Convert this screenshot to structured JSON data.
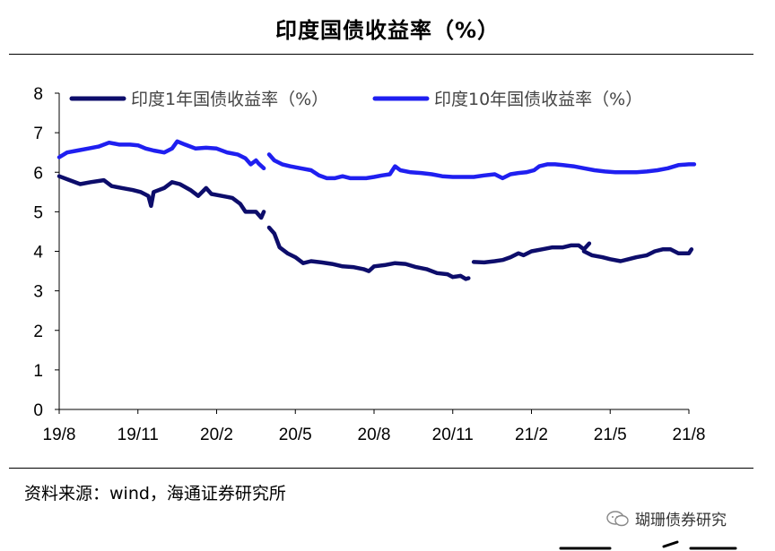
{
  "title": "印度国债收益率（%）",
  "source": "资料来源：wind，海通证券研究所",
  "watermark": {
    "text": "瑚珊债券研究",
    "icon": "wechat-icon"
  },
  "colors": {
    "series1": "#0d0d6b",
    "series2": "#1f1ff0",
    "axis": "#000000"
  },
  "chart_data": {
    "type": "line",
    "title": "印度国债收益率（%）",
    "xlabel": "",
    "ylabel": "",
    "ylim": [
      0,
      8
    ],
    "yticks": [
      0,
      1,
      2,
      3,
      4,
      5,
      6,
      7,
      8
    ],
    "xlim": [
      0,
      24
    ],
    "x_tick_labels": [
      {
        "x": 0,
        "label": "19/8"
      },
      {
        "x": 3,
        "label": "19/11"
      },
      {
        "x": 6,
        "label": "20/2"
      },
      {
        "x": 9,
        "label": "20/5"
      },
      {
        "x": 12,
        "label": "20/8"
      },
      {
        "x": 15,
        "label": "20/11"
      },
      {
        "x": 18,
        "label": "21/2"
      },
      {
        "x": 21,
        "label": "21/5"
      },
      {
        "x": 24,
        "label": "21/8"
      }
    ],
    "grid": false,
    "legend": "top",
    "series": [
      {
        "name": "印度1年国债收益率（%）",
        "segments": [
          [
            [
              0,
              5.9
            ],
            [
              0.4,
              5.8
            ],
            [
              0.8,
              5.7
            ],
            [
              1.2,
              5.75
            ],
            [
              1.7,
              5.8
            ],
            [
              2.0,
              5.65
            ],
            [
              2.4,
              5.6
            ],
            [
              2.8,
              5.55
            ],
            [
              3.1,
              5.5
            ],
            [
              3.4,
              5.4
            ],
            [
              3.5,
              5.15
            ],
            [
              3.6,
              5.5
            ],
            [
              4.0,
              5.6
            ],
            [
              4.3,
              5.75
            ],
            [
              4.6,
              5.7
            ],
            [
              5.0,
              5.55
            ],
            [
              5.3,
              5.4
            ],
            [
              5.6,
              5.6
            ],
            [
              5.8,
              5.45
            ],
            [
              6.2,
              5.4
            ],
            [
              6.6,
              5.35
            ],
            [
              6.9,
              5.2
            ],
            [
              7.1,
              5.0
            ],
            [
              7.5,
              5.0
            ],
            [
              7.7,
              4.85
            ],
            [
              7.8,
              5.0
            ]
          ],
          [
            [
              8.0,
              4.6
            ],
            [
              8.2,
              4.45
            ],
            [
              8.4,
              4.1
            ],
            [
              8.7,
              3.95
            ],
            [
              9.0,
              3.85
            ],
            [
              9.3,
              3.7
            ],
            [
              9.6,
              3.75
            ],
            [
              10.0,
              3.72
            ],
            [
              10.4,
              3.68
            ],
            [
              10.8,
              3.62
            ],
            [
              11.2,
              3.6
            ],
            [
              11.6,
              3.55
            ],
            [
              11.8,
              3.5
            ],
            [
              12.0,
              3.62
            ],
            [
              12.4,
              3.65
            ],
            [
              12.8,
              3.7
            ],
            [
              13.2,
              3.68
            ],
            [
              13.6,
              3.6
            ],
            [
              14.0,
              3.55
            ],
            [
              14.4,
              3.45
            ],
            [
              14.8,
              3.42
            ],
            [
              15.0,
              3.35
            ],
            [
              15.3,
              3.38
            ],
            [
              15.5,
              3.3
            ],
            [
              15.6,
              3.32
            ]
          ],
          [
            [
              15.8,
              3.73
            ],
            [
              16.2,
              3.72
            ],
            [
              16.6,
              3.75
            ],
            [
              16.9,
              3.78
            ],
            [
              17.2,
              3.85
            ],
            [
              17.5,
              3.95
            ],
            [
              17.7,
              3.9
            ],
            [
              18.0,
              4.0
            ],
            [
              18.4,
              4.05
            ],
            [
              18.8,
              4.1
            ],
            [
              19.2,
              4.1
            ],
            [
              19.5,
              4.15
            ],
            [
              19.8,
              4.15
            ],
            [
              20.0,
              4.05
            ],
            [
              20.2,
              4.2
            ]
          ],
          [
            [
              20.0,
              4.0
            ],
            [
              20.3,
              3.9
            ],
            [
              20.7,
              3.85
            ],
            [
              21.0,
              3.8
            ],
            [
              21.4,
              3.75
            ],
            [
              21.7,
              3.8
            ],
            [
              22.0,
              3.85
            ],
            [
              22.4,
              3.9
            ],
            [
              22.7,
              4.0
            ],
            [
              23.0,
              4.05
            ],
            [
              23.3,
              4.05
            ],
            [
              23.6,
              3.95
            ],
            [
              24.0,
              3.95
            ],
            [
              24.1,
              4.05
            ]
          ]
        ]
      },
      {
        "name": "印度10年国债收益率（%）",
        "segments": [
          [
            [
              0,
              6.38
            ],
            [
              0.3,
              6.5
            ],
            [
              0.7,
              6.55
            ],
            [
              1.1,
              6.6
            ],
            [
              1.5,
              6.65
            ],
            [
              1.9,
              6.75
            ],
            [
              2.3,
              6.7
            ],
            [
              2.7,
              6.7
            ],
            [
              3.0,
              6.68
            ],
            [
              3.3,
              6.6
            ],
            [
              3.6,
              6.55
            ],
            [
              4.0,
              6.5
            ],
            [
              4.3,
              6.6
            ],
            [
              4.5,
              6.78
            ],
            [
              4.8,
              6.7
            ],
            [
              5.2,
              6.6
            ],
            [
              5.6,
              6.62
            ],
            [
              6.0,
              6.6
            ],
            [
              6.4,
              6.5
            ],
            [
              6.8,
              6.45
            ],
            [
              7.1,
              6.35
            ],
            [
              7.3,
              6.2
            ],
            [
              7.5,
              6.3
            ],
            [
              7.6,
              6.22
            ],
            [
              7.8,
              6.1
            ]
          ],
          [
            [
              8.0,
              6.45
            ],
            [
              8.2,
              6.3
            ],
            [
              8.5,
              6.2
            ],
            [
              8.8,
              6.15
            ],
            [
              9.2,
              6.1
            ],
            [
              9.6,
              6.05
            ],
            [
              9.9,
              5.92
            ],
            [
              10.2,
              5.85
            ],
            [
              10.5,
              5.85
            ],
            [
              10.8,
              5.9
            ],
            [
              11.1,
              5.85
            ],
            [
              11.4,
              5.85
            ],
            [
              11.7,
              5.85
            ],
            [
              12.0,
              5.88
            ],
            [
              12.3,
              5.92
            ],
            [
              12.6,
              5.95
            ],
            [
              12.8,
              6.15
            ],
            [
              13.0,
              6.05
            ],
            [
              13.4,
              6.0
            ],
            [
              13.8,
              5.98
            ],
            [
              14.2,
              5.95
            ],
            [
              14.6,
              5.9
            ],
            [
              15.0,
              5.88
            ],
            [
              15.4,
              5.88
            ],
            [
              15.8,
              5.88
            ],
            [
              16.2,
              5.92
            ],
            [
              16.6,
              5.95
            ],
            [
              16.9,
              5.85
            ],
            [
              17.2,
              5.95
            ],
            [
              17.5,
              5.98
            ],
            [
              17.8,
              6.0
            ],
            [
              18.1,
              6.05
            ],
            [
              18.3,
              6.15
            ],
            [
              18.6,
              6.2
            ],
            [
              18.9,
              6.2
            ],
            [
              19.2,
              6.18
            ],
            [
              19.6,
              6.15
            ],
            [
              20.0,
              6.1
            ],
            [
              20.4,
              6.05
            ],
            [
              20.8,
              6.02
            ],
            [
              21.2,
              6.0
            ],
            [
              21.6,
              6.0
            ],
            [
              22.0,
              6.0
            ],
            [
              22.4,
              6.02
            ],
            [
              22.8,
              6.05
            ],
            [
              23.2,
              6.1
            ],
            [
              23.6,
              6.18
            ],
            [
              24.0,
              6.2
            ],
            [
              24.2,
              6.2
            ]
          ]
        ]
      }
    ]
  }
}
